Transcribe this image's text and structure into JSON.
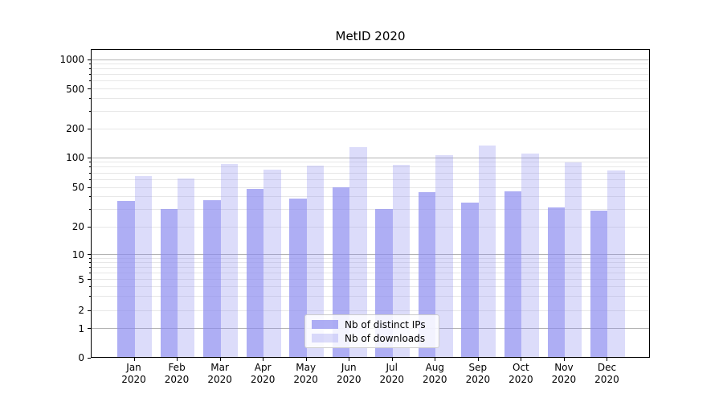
{
  "title": "MetID 2020",
  "legend": {
    "items": [
      {
        "label": "Nb of distinct IPs",
        "color": "rgba(140,140,240,0.7)"
      },
      {
        "label": "Nb of downloads",
        "color": "rgba(140,140,240,0.3)"
      }
    ],
    "position": "lower center"
  },
  "chart_data": {
    "type": "bar",
    "title": "MetID 2020",
    "categories": [
      "Jan 2020",
      "Feb 2020",
      "Mar 2020",
      "Apr 2020",
      "May 2020",
      "Jun 2020",
      "Jul 2020",
      "Aug 2020",
      "Sep 2020",
      "Oct 2020",
      "Nov 2020",
      "Dec 2020"
    ],
    "months": [
      "Jan",
      "Feb",
      "Mar",
      "Apr",
      "May",
      "Jun",
      "Jul",
      "Aug",
      "Sep",
      "Oct",
      "Nov",
      "Dec"
    ],
    "year": "2020",
    "series": [
      {
        "name": "Nb of distinct IPs",
        "color": "rgba(140,140,240,0.7)",
        "values": [
          36,
          30,
          37,
          48,
          38,
          50,
          30,
          44,
          35,
          45,
          31,
          29
        ]
      },
      {
        "name": "Nb of downloads",
        "color": "rgba(140,140,240,0.3)",
        "values": [
          64,
          61,
          85,
          75,
          82,
          127,
          83,
          104,
          132,
          110,
          89,
          73
        ]
      }
    ],
    "xlabel": "",
    "ylabel": "",
    "yscale": "symlog",
    "y_ticks": [
      0,
      1,
      2,
      5,
      10,
      20,
      50,
      100,
      200,
      500,
      1000
    ],
    "ylim": [
      0,
      1270
    ],
    "grid": true,
    "grid_major_color": "#b3b3b3",
    "grid_minor_color": "#e7e7e7",
    "legend_position": "lower center"
  }
}
